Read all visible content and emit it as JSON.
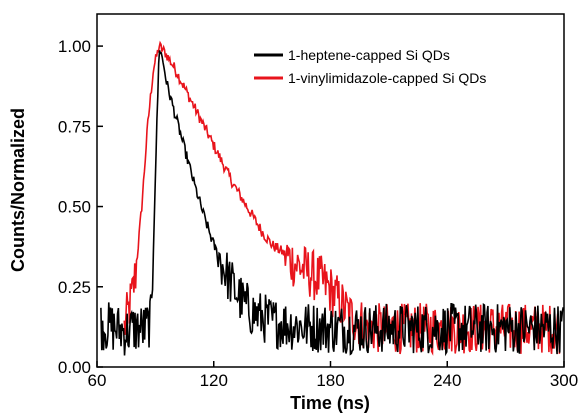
{
  "chart_data": {
    "type": "line",
    "title": "",
    "xlabel": "Time (ns)",
    "ylabel": "Counts/Normalized",
    "xlim": [
      60,
      300
    ],
    "ylim": [
      0,
      1.1
    ],
    "x_ticks": [
      60,
      120,
      180,
      240,
      300
    ],
    "x_tick_labels": [
      "60",
      "120",
      "180",
      "240",
      "300"
    ],
    "y_ticks": [
      0,
      0.25,
      0.5,
      0.75,
      1.0
    ],
    "y_tick_labels": [
      "0.00",
      "0.25",
      "0.50",
      "0.75",
      "1.00"
    ],
    "grid": false,
    "legend_position": "top-right",
    "series": [
      {
        "name": "1-heptene-capped Si QDs",
        "color": "#000000",
        "points": [
          [
            62,
            0.13
          ],
          [
            70,
            0.12
          ],
          [
            75,
            0.11
          ],
          [
            80,
            0.12
          ],
          [
            85,
            0.12
          ],
          [
            88,
            0.15
          ],
          [
            90,
            0.6
          ],
          [
            92,
            1.0
          ],
          [
            94,
            0.95
          ],
          [
            96,
            0.88
          ],
          [
            100,
            0.79
          ],
          [
            105,
            0.68
          ],
          [
            110,
            0.57
          ],
          [
            115,
            0.47
          ],
          [
            120,
            0.38
          ],
          [
            125,
            0.31
          ],
          [
            130,
            0.25
          ],
          [
            135,
            0.2
          ],
          [
            140,
            0.17
          ],
          [
            150,
            0.14
          ],
          [
            160,
            0.13
          ],
          [
            180,
            0.12
          ],
          [
            200,
            0.12
          ],
          [
            220,
            0.12
          ],
          [
            240,
            0.12
          ],
          [
            260,
            0.12
          ],
          [
            280,
            0.12
          ],
          [
            300,
            0.12
          ]
        ]
      },
      {
        "name": "1-vinylimidazole-capped Si QDs",
        "color": "#e8141c",
        "points": [
          [
            74,
            0.12
          ],
          [
            78,
            0.22
          ],
          [
            80,
            0.3
          ],
          [
            83,
            0.5
          ],
          [
            86,
            0.75
          ],
          [
            89,
            0.93
          ],
          [
            92,
            1.0
          ],
          [
            95,
            0.98
          ],
          [
            100,
            0.93
          ],
          [
            105,
            0.87
          ],
          [
            110,
            0.81
          ],
          [
            115,
            0.75
          ],
          [
            120,
            0.69
          ],
          [
            125,
            0.63
          ],
          [
            130,
            0.57
          ],
          [
            135,
            0.52
          ],
          [
            140,
            0.47
          ],
          [
            145,
            0.42
          ],
          [
            150,
            0.38
          ],
          [
            155,
            0.36
          ],
          [
            160,
            0.33
          ],
          [
            165,
            0.31
          ],
          [
            170,
            0.29
          ],
          [
            175,
            0.27
          ],
          [
            180,
            0.24
          ],
          [
            185,
            0.2
          ],
          [
            190,
            0.16
          ],
          [
            200,
            0.12
          ],
          [
            220,
            0.12
          ],
          [
            240,
            0.12
          ],
          [
            260,
            0.12
          ],
          [
            280,
            0.12
          ],
          [
            298,
            0.12
          ]
        ]
      }
    ],
    "noise_amplitude": 0.05
  }
}
